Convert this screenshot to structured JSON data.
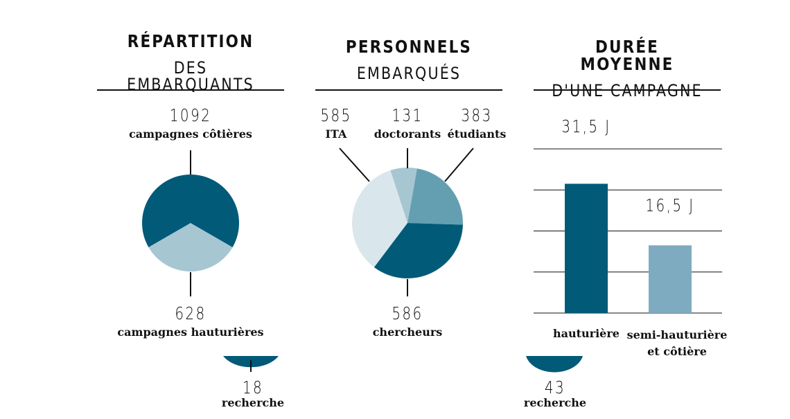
{
  "colors": {
    "dark": "#005a78",
    "mid": "#649fb1",
    "light": "#a6c6d2",
    "pale": "#d9e6eb",
    "bar_light": "#7fabc0",
    "grid": "#111111"
  },
  "panels": [
    {
      "title_line1": "RÉPARTITION",
      "title_line2": "DES EMBARQUANTS"
    },
    {
      "title_line1": "PERSONNELS",
      "title_line2": "EMBARQUÉS"
    },
    {
      "title_line1": "DURÉE MOYENNE",
      "title_line2": "D'UNE CAMPAGNE"
    }
  ],
  "chart_data": [
    {
      "type": "pie",
      "slices": [
        {
          "value": "1092",
          "label": "campagnes côtières",
          "numeric": 1092
        },
        {
          "value": "628",
          "label": "campagnes hauturières",
          "numeric": 628
        },
        {
          "value": "18",
          "label": "recherche",
          "numeric": 18
        }
      ]
    },
    {
      "type": "pie",
      "slices": [
        {
          "value": "585",
          "label": "ITA",
          "numeric": 585
        },
        {
          "value": "131",
          "label": "doctorants",
          "numeric": 131
        },
        {
          "value": "383",
          "label": "étudiants",
          "numeric": 383
        },
        {
          "value": "586",
          "label": "chercheurs",
          "numeric": 586
        },
        {
          "value": "43",
          "label": "recherche",
          "numeric": 43
        }
      ]
    },
    {
      "type": "bar",
      "categories": [
        "hauturière",
        "semi-hauturière\net côtière"
      ],
      "values": [
        31.5,
        16.5
      ],
      "value_labels": [
        "31,5 J",
        "16,5 J"
      ],
      "unit": "J",
      "ylim": [
        0,
        40
      ],
      "grid": true
    }
  ]
}
